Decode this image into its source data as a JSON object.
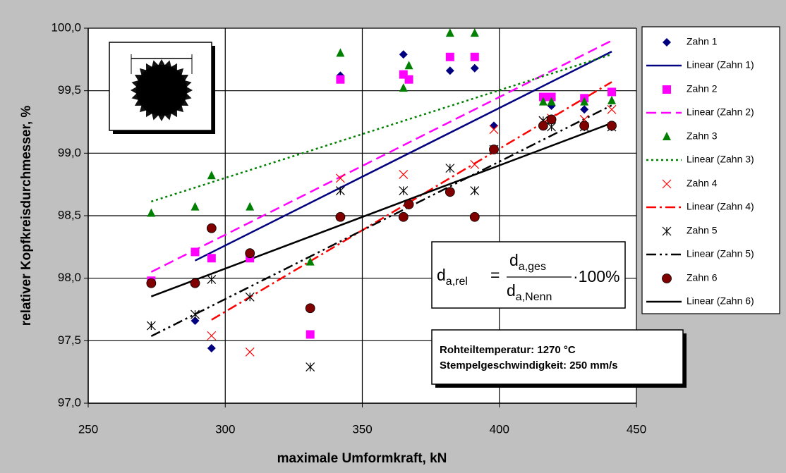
{
  "chart_data": {
    "type": "scatter",
    "x_label": "maximale Umformkraft, kN",
    "y_label": "relativer Kopfkreisdurchmesser, %",
    "xlim": [
      250,
      450
    ],
    "xticks": [
      250,
      300,
      350,
      400,
      450
    ],
    "ylim": [
      97,
      100
    ],
    "yticks": [
      {
        "value": 97,
        "label": "97,0"
      },
      {
        "value": 97.5,
        "label": "97,5"
      },
      {
        "value": 98,
        "label": "98,0"
      },
      {
        "value": 98.5,
        "label": "98,5"
      },
      {
        "value": 99,
        "label": "99,0"
      },
      {
        "value": 99.5,
        "label": "99,5"
      },
      {
        "value": 100,
        "label": "100,0"
      }
    ],
    "grid": true,
    "legend": "right",
    "series": [
      {
        "name": "Zahn 1",
        "color": "#000080",
        "marker": "diamond",
        "trendline": {
          "name": "Linear (Zahn 1)",
          "color": "#000080",
          "dash": "solid"
        },
        "x": [
          289,
          295,
          342,
          365,
          382,
          391,
          398,
          416,
          419,
          431,
          441
        ],
        "values": [
          97.66,
          97.44,
          99.62,
          99.79,
          99.66,
          99.68,
          99.22,
          99.43,
          99.38,
          99.35,
          99.21
        ]
      },
      {
        "name": "Zahn 2",
        "color": "#ff00ff",
        "marker": "square",
        "trendline": {
          "name": "Linear (Zahn 2)",
          "color": "#ff00ff",
          "dash": "dashed"
        },
        "x": [
          273,
          289,
          295,
          309,
          331,
          342,
          365,
          367,
          382,
          391,
          416,
          419,
          431,
          441
        ],
        "values": [
          97.98,
          98.21,
          98.16,
          98.16,
          97.55,
          99.59,
          99.63,
          99.59,
          99.77,
          99.77,
          99.45,
          99.45,
          99.44,
          99.49
        ]
      },
      {
        "name": "Zahn 3",
        "color": "#008000",
        "marker": "triangle",
        "trendline": {
          "name": "Linear (Zahn 3)",
          "color": "#008000",
          "dash": "dotted"
        },
        "x": [
          273,
          289,
          295,
          309,
          331,
          342,
          365,
          367,
          382,
          391,
          416,
          419,
          431,
          441
        ],
        "values": [
          98.52,
          98.57,
          98.82,
          98.57,
          98.13,
          99.8,
          99.52,
          99.7,
          99.96,
          99.96,
          99.41,
          99.41,
          99.41,
          99.42
        ]
      },
      {
        "name": "Zahn 4",
        "color": "#ff0000",
        "marker": "x",
        "trendline": {
          "name": "Linear (Zahn 4)",
          "color": "#ff0000",
          "dash": "dashdot"
        },
        "x": [
          295,
          309,
          342,
          365,
          391,
          398,
          416,
          419,
          431,
          441
        ],
        "values": [
          97.54,
          97.41,
          98.8,
          98.83,
          98.91,
          99.19,
          99.26,
          99.28,
          99.27,
          99.35
        ]
      },
      {
        "name": "Zahn 5",
        "color": "#000000",
        "marker": "asterisk",
        "trendline": {
          "name": "Linear (Zahn 5)",
          "color": "#000000",
          "dash": "dashdotdot"
        },
        "x": [
          273,
          289,
          295,
          309,
          331,
          342,
          365,
          382,
          391,
          398,
          416,
          419,
          431,
          441
        ],
        "values": [
          97.62,
          97.71,
          97.99,
          97.85,
          97.29,
          98.7,
          98.7,
          98.88,
          98.7,
          99.03,
          99.26,
          99.21,
          99.21,
          99.21
        ]
      },
      {
        "name": "Zahn 6",
        "color": "#800000",
        "marker": "circle",
        "trendline": {
          "name": "Linear (Zahn 6)",
          "color": "#000000",
          "dash": "solid"
        },
        "x": [
          273,
          289,
          295,
          309,
          331,
          342,
          365,
          367,
          382,
          391,
          398,
          416,
          419,
          431,
          441
        ],
        "values": [
          97.96,
          97.96,
          98.4,
          98.2,
          97.76,
          98.49,
          98.49,
          98.59,
          98.69,
          98.49,
          99.03,
          99.22,
          99.27,
          99.22,
          99.22
        ]
      }
    ],
    "formula": {
      "lhs": [
        "d",
        "a,rel"
      ],
      "equals": "=",
      "numerator": [
        "d",
        "a,ges"
      ],
      "denominator": [
        "d",
        "a,Nenn"
      ],
      "factor": "·100%"
    },
    "info": [
      "Rohteiltemperatur: 1270 °C",
      "Stempelgeschwindigkeit: 250 mm/s"
    ]
  }
}
